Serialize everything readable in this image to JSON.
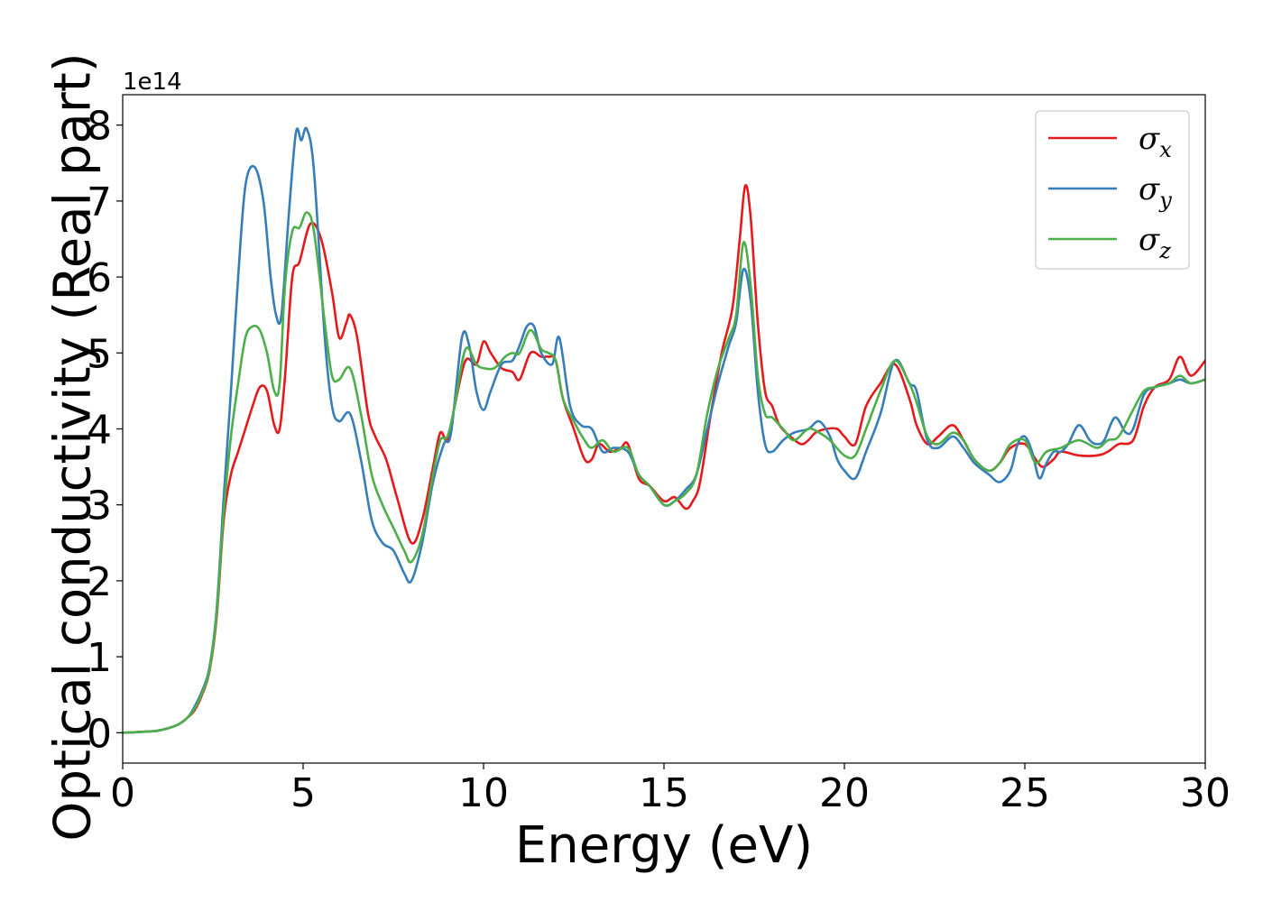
{
  "chart_data": {
    "type": "line",
    "xlabel": "Energy (eV)",
    "ylabel": "Optical conductivity (Real part)",
    "y_offset_label": "1e14",
    "xlim": [
      0,
      30
    ],
    "ylim": [
      -0.4,
      8.4
    ],
    "x_ticks": [
      0,
      5,
      10,
      15,
      20,
      25,
      30
    ],
    "y_ticks": [
      0,
      1,
      2,
      3,
      4,
      5,
      6,
      7,
      8
    ],
    "grid": false,
    "legend_position": "top-right",
    "series": [
      {
        "name": "σx",
        "symbol": "σ",
        "subscript": "x",
        "color": "#e41a1c",
        "x": [
          0,
          0.5,
          1,
          1.5,
          1.8,
          2,
          2.2,
          2.4,
          2.6,
          2.8,
          3,
          3.2,
          3.4,
          3.6,
          3.8,
          4,
          4.2,
          4.35,
          4.5,
          4.7,
          4.9,
          5.2,
          5.5,
          5.8,
          6,
          6.2,
          6.3,
          6.5,
          6.8,
          7,
          7.3,
          7.6,
          8,
          8.3,
          8.6,
          8.8,
          9,
          9.2,
          9.5,
          9.8,
          10,
          10.2,
          10.5,
          10.8,
          11,
          11.3,
          11.6,
          11.8,
          12,
          12.2,
          12.5,
          12.8,
          13,
          13.2,
          13.5,
          13.8,
          14,
          14.3,
          14.6,
          15,
          15.3,
          15.6,
          15.8,
          16,
          16.3,
          16.6,
          16.9,
          17.1,
          17.25,
          17.4,
          17.6,
          17.8,
          18,
          18.2,
          18.5,
          18.8,
          19,
          19.2,
          19.5,
          19.8,
          20,
          20.3,
          20.6,
          21,
          21.4,
          21.8,
          22,
          22.3,
          22.6,
          23,
          23.3,
          23.6,
          24,
          24.3,
          24.6,
          25,
          25.3,
          25.5,
          25.8,
          26,
          26.5,
          27,
          27.3,
          27.6,
          28,
          28.3,
          28.6,
          29,
          29.3,
          29.6,
          30
        ],
        "y": [
          0,
          0.01,
          0.03,
          0.1,
          0.2,
          0.3,
          0.5,
          0.8,
          1.5,
          2.8,
          3.4,
          3.7,
          4,
          4.3,
          4.55,
          4.5,
          4.05,
          4.0,
          4.7,
          6,
          6.2,
          6.7,
          6.5,
          5.8,
          5.2,
          5.4,
          5.5,
          5.2,
          4.2,
          3.9,
          3.6,
          3.1,
          2.5,
          2.8,
          3.5,
          3.95,
          3.85,
          4.3,
          4.9,
          4.85,
          5.15,
          5.0,
          4.8,
          4.75,
          4.65,
          5.0,
          4.95,
          4.95,
          4.9,
          4.4,
          4,
          3.6,
          3.6,
          3.8,
          3.7,
          3.75,
          3.8,
          3.35,
          3.25,
          3.05,
          3.1,
          2.95,
          3.05,
          3.3,
          4.2,
          5,
          5.6,
          6.5,
          7.2,
          6.8,
          5.4,
          4.5,
          4.3,
          4.05,
          3.9,
          3.8,
          3.85,
          3.95,
          4,
          4.0,
          3.9,
          3.8,
          4.3,
          4.6,
          4.85,
          4.4,
          4.05,
          3.8,
          3.9,
          4.05,
          3.85,
          3.6,
          3.45,
          3.55,
          3.75,
          3.8,
          3.6,
          3.5,
          3.6,
          3.7,
          3.65,
          3.65,
          3.7,
          3.8,
          3.85,
          4.3,
          4.55,
          4.65,
          4.95,
          4.7,
          4.9
        ]
      },
      {
        "name": "σy",
        "symbol": "σ",
        "subscript": "y",
        "color": "#377eb8",
        "x": [
          0,
          0.5,
          1,
          1.5,
          1.8,
          2,
          2.2,
          2.4,
          2.6,
          2.8,
          3,
          3.2,
          3.4,
          3.65,
          3.9,
          4.1,
          4.25,
          4.4,
          4.6,
          4.8,
          4.95,
          5.1,
          5.3,
          5.6,
          5.8,
          6,
          6.3,
          6.6,
          6.9,
          7.2,
          7.5,
          7.8,
          8,
          8.3,
          8.6,
          8.9,
          9.1,
          9.4,
          9.6,
          9.8,
          10,
          10.2,
          10.5,
          10.8,
          11,
          11.2,
          11.4,
          11.6,
          11.9,
          12.1,
          12.4,
          12.7,
          13,
          13.3,
          13.6,
          14,
          14.3,
          14.6,
          15,
          15.3,
          15.6,
          15.9,
          16.2,
          16.5,
          16.8,
          17,
          17.2,
          17.4,
          17.6,
          17.8,
          18,
          18.3,
          18.6,
          19,
          19.3,
          19.6,
          19.8,
          20,
          20.3,
          20.6,
          21,
          21.4,
          21.8,
          22,
          22.3,
          22.6,
          23,
          23.3,
          23.6,
          24,
          24.3,
          24.6,
          24.8,
          25,
          25.2,
          25.4,
          25.6,
          25.8,
          26,
          26.2,
          26.5,
          26.8,
          27,
          27.2,
          27.5,
          27.8,
          28,
          28.3,
          28.6,
          29,
          29.3,
          29.6,
          30
        ],
        "y": [
          0,
          0.01,
          0.03,
          0.1,
          0.2,
          0.35,
          0.55,
          0.85,
          1.6,
          3.1,
          4.5,
          6,
          7.2,
          7.45,
          7,
          6,
          5.5,
          5.5,
          6.8,
          7.9,
          7.8,
          7.95,
          7.4,
          5.2,
          4.3,
          4.1,
          4.2,
          3.6,
          2.8,
          2.5,
          2.4,
          2.1,
          2.0,
          2.5,
          3.3,
          3.8,
          3.95,
          5.2,
          5.1,
          4.5,
          4.25,
          4.5,
          4.85,
          4.9,
          5.1,
          5.35,
          5.35,
          5.0,
          4.85,
          5.2,
          4.3,
          4.05,
          4.0,
          3.7,
          3.75,
          3.7,
          3.4,
          3.25,
          3.0,
          3.05,
          3.2,
          3.4,
          4,
          4.6,
          5.1,
          5.4,
          6.1,
          5.7,
          4.5,
          3.8,
          3.7,
          3.85,
          3.95,
          4.0,
          4.1,
          3.9,
          3.6,
          3.45,
          3.35,
          3.7,
          4.2,
          4.9,
          4.6,
          4.5,
          3.85,
          3.75,
          3.9,
          3.75,
          3.55,
          3.4,
          3.3,
          3.45,
          3.8,
          3.9,
          3.7,
          3.35,
          3.55,
          3.7,
          3.7,
          3.8,
          4.05,
          3.85,
          3.8,
          3.85,
          4.15,
          3.95,
          4.0,
          4.45,
          4.55,
          4.6,
          4.65,
          4.6,
          4.65
        ]
      },
      {
        "name": "σz",
        "symbol": "σ",
        "subscript": "z",
        "color": "#4daf4a",
        "x": [
          0,
          0.5,
          1,
          1.5,
          1.8,
          2,
          2.2,
          2.4,
          2.6,
          2.8,
          3,
          3.2,
          3.4,
          3.6,
          3.8,
          4,
          4.2,
          4.35,
          4.5,
          4.7,
          4.9,
          5.1,
          5.3,
          5.6,
          5.8,
          6,
          6.3,
          6.6,
          6.9,
          7.2,
          7.5,
          7.8,
          8,
          8.3,
          8.6,
          8.8,
          9,
          9.2,
          9.5,
          9.8,
          10,
          10.3,
          10.6,
          10.8,
          11,
          11.3,
          11.6,
          11.8,
          12,
          12.2,
          12.5,
          12.8,
          13,
          13.3,
          13.6,
          14,
          14.3,
          14.6,
          15,
          15.3,
          15.6,
          15.9,
          16.2,
          16.5,
          16.8,
          17,
          17.2,
          17.4,
          17.6,
          17.8,
          18,
          18.3,
          18.6,
          19,
          19.3,
          19.6,
          20,
          20.3,
          20.6,
          21,
          21.4,
          21.8,
          22,
          22.3,
          22.6,
          23,
          23.3,
          23.6,
          24,
          24.3,
          24.6,
          25,
          25.3,
          25.6,
          26,
          26.5,
          27,
          27.3,
          27.6,
          28,
          28.3,
          28.6,
          29,
          29.3,
          29.6,
          30
        ],
        "y": [
          0,
          0.01,
          0.03,
          0.1,
          0.2,
          0.32,
          0.52,
          0.82,
          1.55,
          2.9,
          3.9,
          4.6,
          5.2,
          5.35,
          5.3,
          5,
          4.5,
          4.6,
          5.9,
          6.6,
          6.65,
          6.85,
          6.6,
          5.4,
          4.7,
          4.65,
          4.8,
          4.2,
          3.4,
          3.0,
          2.7,
          2.4,
          2.25,
          2.6,
          3.4,
          3.85,
          3.9,
          4.3,
          5.05,
          4.85,
          4.8,
          4.8,
          4.95,
          5.0,
          5.0,
          5.3,
          5.05,
          5.0,
          4.9,
          4.4,
          4.1,
          3.85,
          3.75,
          3.85,
          3.7,
          3.75,
          3.4,
          3.25,
          3.0,
          3.05,
          3.15,
          3.4,
          4.2,
          4.8,
          5.2,
          5.5,
          6.45,
          5.9,
          4.7,
          4.2,
          4.15,
          4.0,
          3.85,
          4.0,
          3.95,
          3.85,
          3.65,
          3.65,
          4.0,
          4.5,
          4.9,
          4.6,
          4.35,
          3.9,
          3.8,
          3.95,
          3.85,
          3.6,
          3.45,
          3.55,
          3.8,
          3.85,
          3.55,
          3.7,
          3.75,
          3.85,
          3.75,
          3.85,
          3.9,
          4.25,
          4.5,
          4.55,
          4.6,
          4.7,
          4.6,
          4.65
        ]
      }
    ]
  }
}
